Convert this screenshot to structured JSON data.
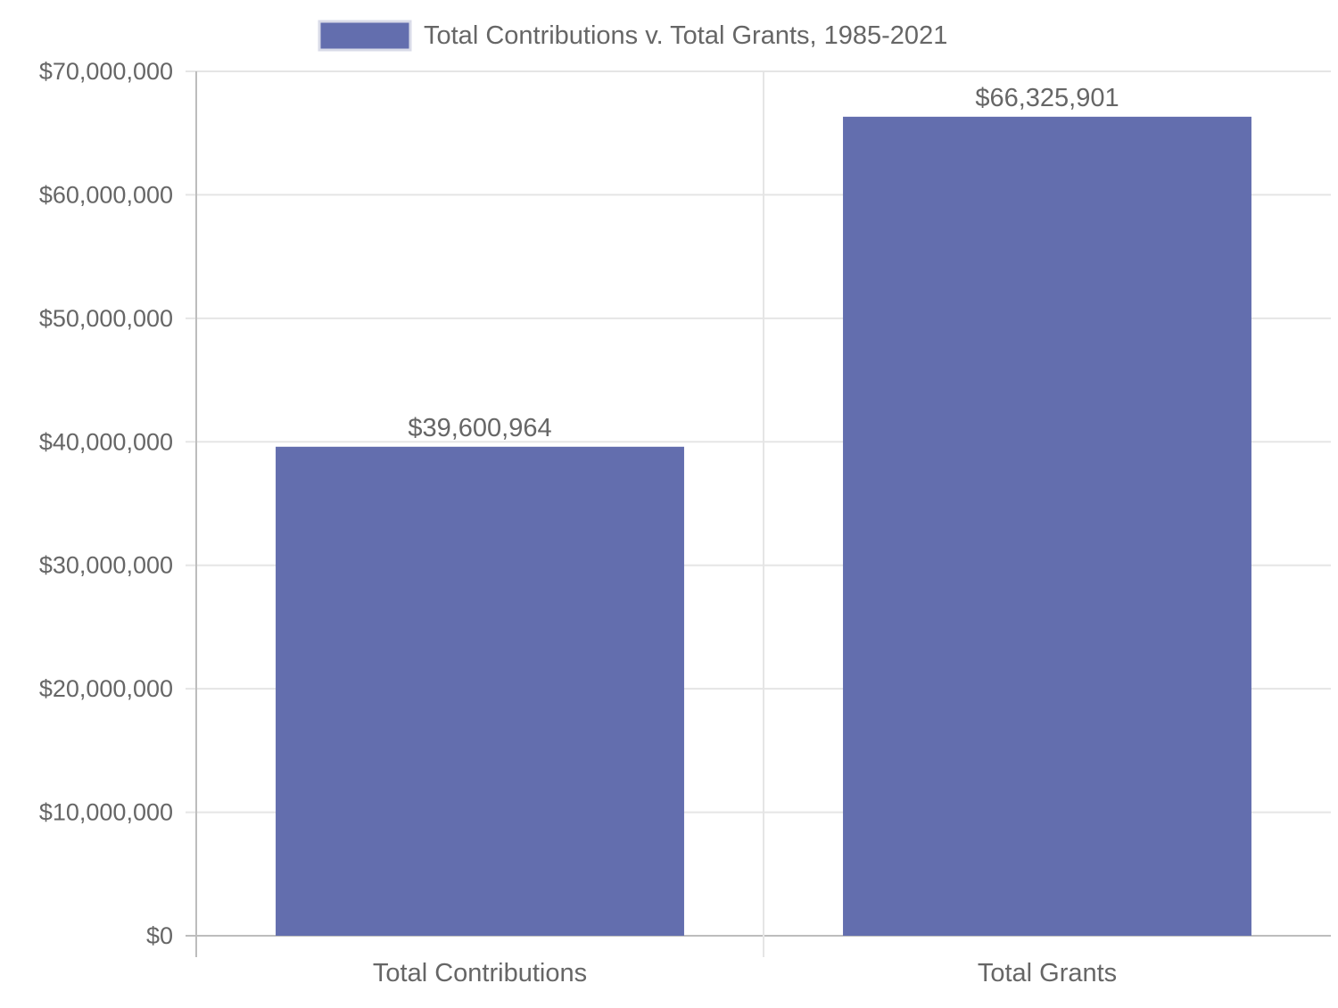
{
  "chart_data": {
    "type": "bar",
    "categories": [
      "Total Contributions",
      "Total Grants"
    ],
    "series": [
      {
        "name": "Total Contributions v. Total Grants, 1985-2021",
        "values": [
          39600964,
          66325901
        ]
      }
    ],
    "value_labels": [
      "$39,600,964",
      "$66,325,901"
    ],
    "ylim": [
      0,
      70000000
    ],
    "y_ticks": [
      0,
      10000000,
      20000000,
      30000000,
      40000000,
      50000000,
      60000000,
      70000000
    ],
    "y_tick_labels": [
      "$0",
      "$10,000,000",
      "$20,000,000",
      "$30,000,000",
      "$40,000,000",
      "$50,000,000",
      "$60,000,000",
      "$70,000,000"
    ],
    "title": "",
    "xlabel": "",
    "ylabel": "",
    "grid": true,
    "legend_position": "top-center",
    "colors": {
      "bar": "#636eae",
      "grid": "#e5e5e5",
      "axis": "#bdbdbd",
      "text": "#666666"
    }
  }
}
